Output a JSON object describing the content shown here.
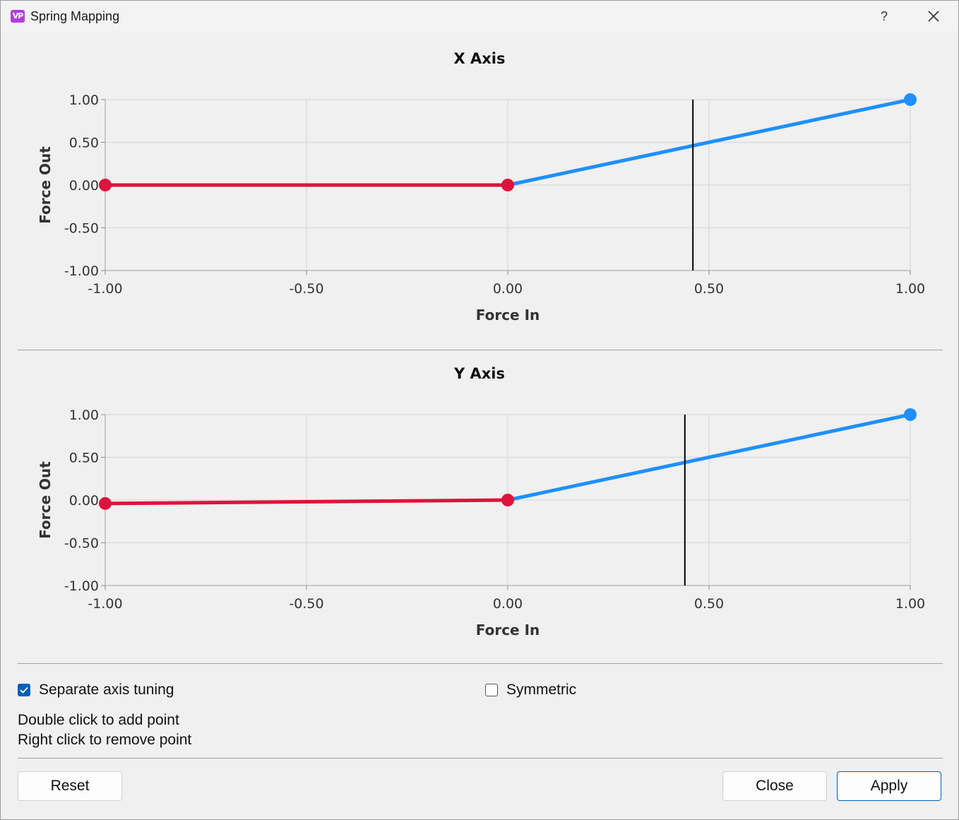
{
  "window": {
    "title": "Spring Mapping",
    "icon_text": "VP",
    "help_label": "?"
  },
  "charts": [
    {
      "title": "X Axis",
      "xlabel": "Force In",
      "ylabel": "Force Out"
    },
    {
      "title": "Y Axis",
      "xlabel": "Force In",
      "ylabel": "Force Out"
    }
  ],
  "chart_data": [
    {
      "type": "line",
      "title": "X Axis",
      "xlabel": "Force In",
      "ylabel": "Force Out",
      "xlim": [
        -1,
        1
      ],
      "ylim": [
        -1,
        1
      ],
      "x_ticks": [
        "-1.00",
        "-0.50",
        "0.00",
        "0.50",
        "1.00"
      ],
      "y_ticks": [
        "1.00",
        "0.50",
        "0.00",
        "-0.50",
        "-1.00"
      ],
      "grid": true,
      "negative_points": [
        {
          "x": -1.0,
          "y": 0.0
        },
        {
          "x": 0.0,
          "y": 0.0
        }
      ],
      "positive_points": [
        {
          "x": 0.0,
          "y": 0.0
        },
        {
          "x": 1.0,
          "y": 1.0
        }
      ],
      "marker_x": 0.46,
      "colors": {
        "negative": "#dc143c",
        "positive": "#1e90ff",
        "marker": "#000000"
      }
    },
    {
      "type": "line",
      "title": "Y Axis",
      "xlabel": "Force In",
      "ylabel": "Force Out",
      "xlim": [
        -1,
        1
      ],
      "ylim": [
        -1,
        1
      ],
      "x_ticks": [
        "-1.00",
        "-0.50",
        "0.00",
        "0.50",
        "1.00"
      ],
      "y_ticks": [
        "1.00",
        "0.50",
        "0.00",
        "-0.50",
        "-1.00"
      ],
      "grid": true,
      "negative_points": [
        {
          "x": -1.0,
          "y": -0.04
        },
        {
          "x": 0.0,
          "y": 0.0
        }
      ],
      "positive_points": [
        {
          "x": 0.0,
          "y": 0.0
        },
        {
          "x": 1.0,
          "y": 1.0
        }
      ],
      "marker_x": 0.44,
      "colors": {
        "negative": "#dc143c",
        "positive": "#1e90ff",
        "marker": "#000000"
      }
    }
  ],
  "options": {
    "separate_axis": {
      "label": "Separate axis tuning",
      "checked": true
    },
    "symmetric": {
      "label": "Symmetric",
      "checked": false
    }
  },
  "hints": {
    "add": "Double click to add point",
    "remove": "Right click to remove point"
  },
  "buttons": {
    "reset": "Reset",
    "close": "Close",
    "apply": "Apply"
  },
  "colors": {
    "accent": "#005fb8",
    "negative_curve": "#dc143c",
    "positive_curve": "#1e90ff"
  }
}
